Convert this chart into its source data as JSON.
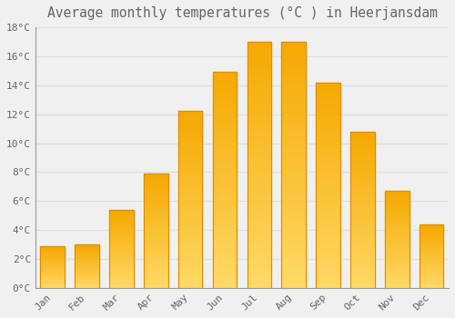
{
  "title": "Average monthly temperatures (°C ) in Heerjansdam",
  "months": [
    "Jan",
    "Feb",
    "Mar",
    "Apr",
    "May",
    "Jun",
    "Jul",
    "Aug",
    "Sep",
    "Oct",
    "Nov",
    "Dec"
  ],
  "values": [
    2.9,
    3.0,
    5.4,
    7.9,
    12.2,
    14.9,
    17.0,
    17.0,
    14.2,
    10.8,
    6.7,
    4.4
  ],
  "bar_color_light": "#FFD966",
  "bar_color_dark": "#F5A800",
  "bar_edge_color": "#E08C00",
  "background_color": "#F0F0F0",
  "grid_color": "#DDDDDD",
  "text_color": "#666666",
  "ylim": [
    0,
    18
  ],
  "yticks": [
    0,
    2,
    4,
    6,
    8,
    10,
    12,
    14,
    16,
    18
  ],
  "title_fontsize": 10.5,
  "tick_fontsize": 8,
  "bar_width": 0.7
}
